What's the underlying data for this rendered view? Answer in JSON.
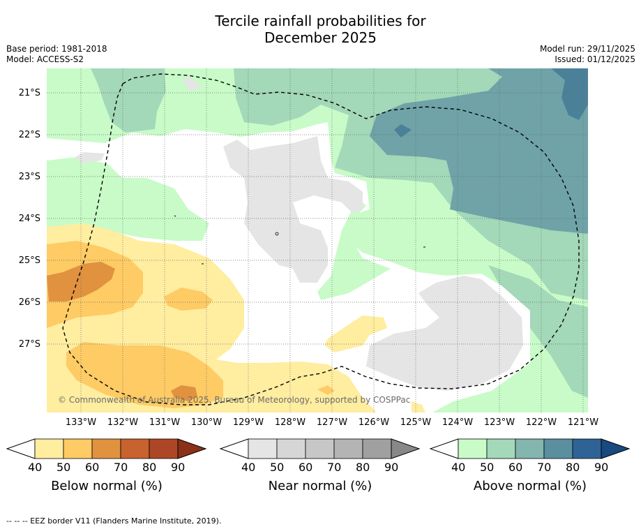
{
  "title_line1": "Tercile rainfall probabilities for",
  "title_line2": "December 2025",
  "meta_left": {
    "base_period": "Base period: 1981-2018",
    "model": "Model: ACCESS-S2"
  },
  "meta_right": {
    "model_run": "Model run: 29/11/2025",
    "issued": "Issued: 01/12/2025"
  },
  "map": {
    "latitudes": [
      "21°S",
      "22°S",
      "23°S",
      "24°S",
      "25°S",
      "26°S",
      "27°S"
    ],
    "longitudes": [
      "133°W",
      "132°W",
      "131°W",
      "130°W",
      "129°W",
      "128°W",
      "127°W",
      "126°W",
      "125°W",
      "124°W",
      "123°W",
      "122°W",
      "121°W"
    ],
    "copyright": "© Commonwealth of Australia 2025, Bureau of Meteorology, supported by COSPPac"
  },
  "colorbars": [
    {
      "label": "Below normal (%)",
      "ticks": [
        "40",
        "50",
        "60",
        "70",
        "80",
        "90"
      ],
      "colors": [
        "#ffeda0",
        "#fecb65",
        "#e0923f",
        "#c8622f",
        "#ad4626",
        "#8a3118"
      ]
    },
    {
      "label": "Near normal (%)",
      "ticks": [
        "40",
        "50",
        "60",
        "70",
        "80",
        "90"
      ],
      "colors": [
        "#e5e5e5",
        "#d6d6d6",
        "#c7c7c7",
        "#b4b4b4",
        "#a0a0a0",
        "#888888"
      ]
    },
    {
      "label": "Above normal (%)",
      "ticks": [
        "40",
        "50",
        "60",
        "70",
        "80",
        "90"
      ],
      "colors": [
        "#c8fbc8",
        "#a3d8b8",
        "#82b6ae",
        "#5a8fa0",
        "#2f6396",
        "#184a80"
      ]
    }
  ],
  "footer": "--  --  -- EEZ border V11 (Flanders Marine Institute, 2019)."
}
